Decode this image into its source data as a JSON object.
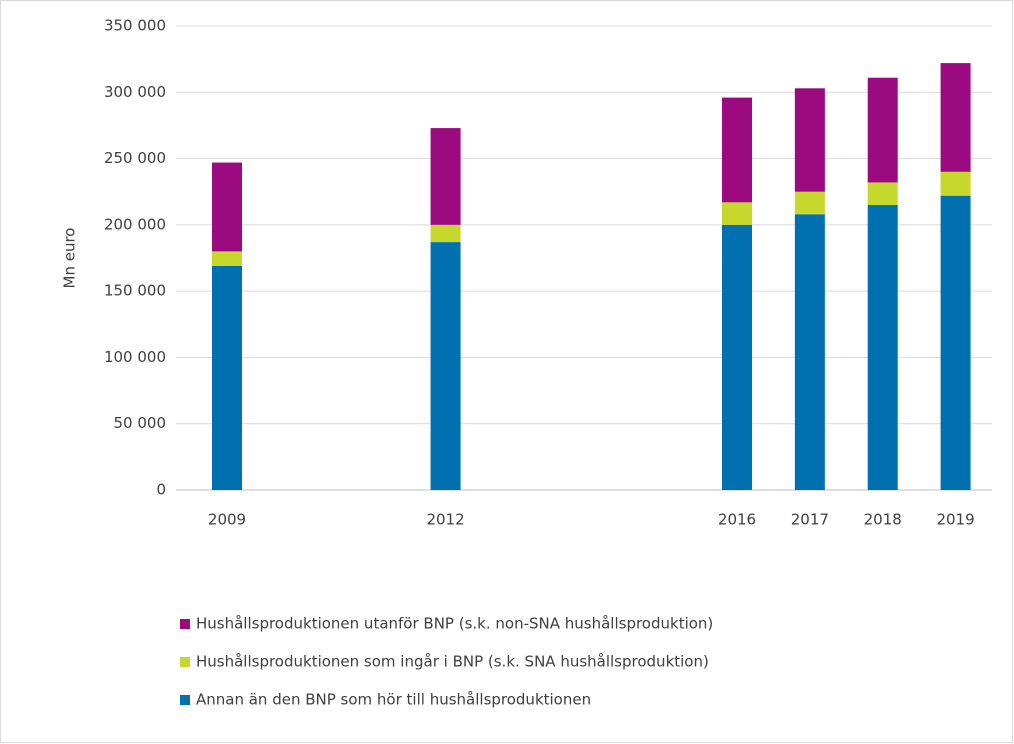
{
  "chart_data": {
    "type": "stacked_bar",
    "y_label": "Mn euro",
    "x": [
      2009,
      2012,
      2016,
      2017,
      2018,
      2019
    ],
    "xlim": [
      2008.3,
      2019.5
    ],
    "ylim": [
      0,
      350000
    ],
    "yticks": [
      0,
      {
        "value": 50000,
        "label": "50 000"
      },
      {
        "value": 100000,
        "label": "100 000"
      },
      {
        "value": 150000,
        "label": "150 000"
      },
      {
        "value": 200000,
        "label": "200 000"
      },
      {
        "value": 250000,
        "label": "250 000"
      },
      {
        "value": 300000,
        "label": "300 000"
      },
      {
        "value": 350000,
        "label": "350 000"
      }
    ],
    "grid": true,
    "legend": "bottom",
    "series": [
      {
        "name": "Annan än den BNP som hör till hushållsproduktionen",
        "color": "#0070b0",
        "values": [
          169000,
          187000,
          200000,
          208000,
          215000,
          222000
        ]
      },
      {
        "name": "Hushållsproduktionen som ingår i BNP (s.k. SNA hushållsproduktion)",
        "color": "#c5d82b",
        "values": [
          11000,
          13000,
          17000,
          17000,
          17000,
          18000
        ]
      },
      {
        "name": "Hushållsproduktionen utanför BNP (s.k. non-SNA hushållsproduktion)",
        "color": "#9b0a7e",
        "values": [
          67000,
          73000,
          79000,
          78000,
          79000,
          82000
        ]
      }
    ]
  }
}
